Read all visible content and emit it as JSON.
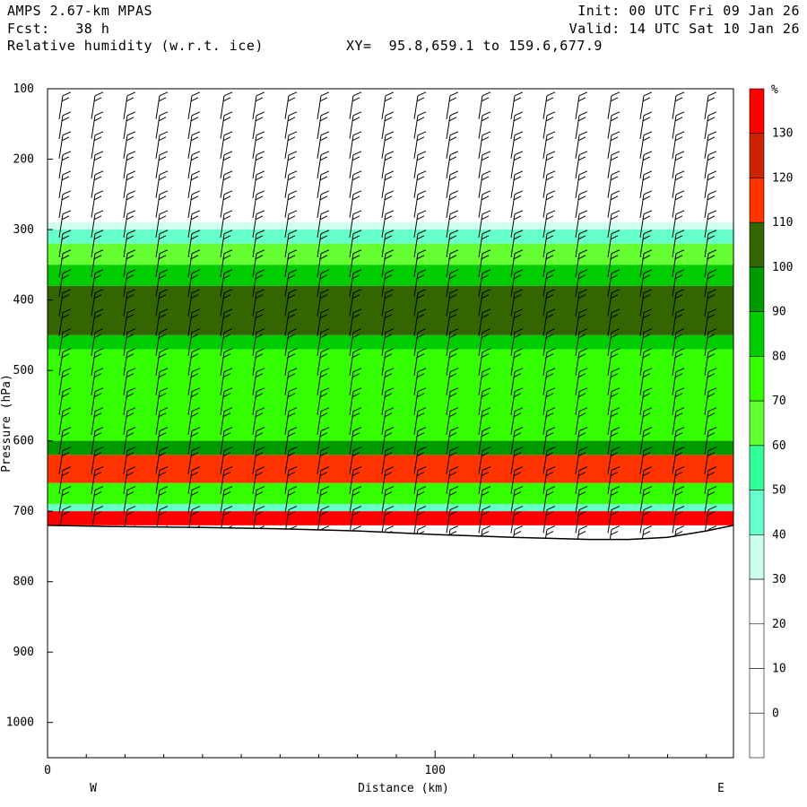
{
  "header": {
    "model": "AMPS 2.67-km MPAS",
    "forecast": "Fcst:   38 h",
    "field": "Relative humidity (w.r.t. ice)",
    "xy": "XY=  95.8,659.1 to 159.6,677.9",
    "init": "Init: 00 UTC Fri 09 Jan 26",
    "valid": "Valid: 14 UTC Sat 10 Jan 26"
  },
  "chart_data": {
    "type": "heatmap",
    "title": "Relative humidity (w.r.t. ice)",
    "xlabel": "Distance (km)",
    "ylabel": "Pressure (hPa)",
    "xlim": [
      0,
      177
    ],
    "ylim": [
      1050,
      100
    ],
    "x_ticks": [
      0,
      100
    ],
    "y_ticks": [
      100,
      200,
      300,
      400,
      500,
      600,
      700,
      800,
      900,
      1000
    ],
    "x_end_labels": {
      "left": "W",
      "right": "E"
    },
    "colorbar": {
      "unit": "%",
      "levels": [
        -10,
        0,
        10,
        20,
        30,
        40,
        50,
        60,
        70,
        80,
        90,
        100,
        110,
        120,
        130,
        140
      ],
      "labels": [
        "0",
        "10",
        "20",
        "30",
        "40",
        "50",
        "60",
        "70",
        "80",
        "90",
        "100",
        "110",
        "120",
        "130"
      ],
      "colors": [
        "#ffffff",
        "#ffffff",
        "#ffffff",
        "#ffffff",
        "#ccffee",
        "#66ffcc",
        "#33ff99",
        "#66ff33",
        "#33ff00",
        "#00cc00",
        "#009900",
        "#336600",
        "#ff3300",
        "#cc2200",
        "#ff0000"
      ]
    },
    "rh_layers_hPa": [
      {
        "name": "white",
        "top": 100,
        "bottom": 290,
        "rh": 10
      },
      {
        "name": "pale",
        "top": 290,
        "bottom": 300,
        "rh": 35
      },
      {
        "name": "aqua",
        "top": 300,
        "bottom": 320,
        "rh": 45
      },
      {
        "name": "mid-green",
        "top": 320,
        "bottom": 350,
        "rh": 65
      },
      {
        "name": "green",
        "top": 350,
        "bottom": 380,
        "rh": 85
      },
      {
        "name": "dark-olive",
        "top": 380,
        "bottom": 450,
        "rh": 105
      },
      {
        "name": "green",
        "top": 450,
        "bottom": 470,
        "rh": 85
      },
      {
        "name": "bright-green",
        "top": 470,
        "bottom": 600,
        "rh": 75
      },
      {
        "name": "dark-green",
        "top": 600,
        "bottom": 620,
        "rh": 95
      },
      {
        "name": "ice-supersat",
        "top": 620,
        "bottom": 660,
        "rh": 115
      },
      {
        "name": "green",
        "top": 660,
        "bottom": 690,
        "rh": 70
      },
      {
        "name": "aqua",
        "top": 690,
        "bottom": 700,
        "rh": 45
      },
      {
        "name": "surface-red",
        "top": 700,
        "bottom": 720,
        "rh": 135
      }
    ],
    "terrain_hPa": [
      [
        0,
        720
      ],
      [
        20,
        722
      ],
      [
        40,
        723
      ],
      [
        60,
        725
      ],
      [
        80,
        728
      ],
      [
        100,
        733
      ],
      [
        120,
        737
      ],
      [
        140,
        740
      ],
      [
        150,
        740
      ],
      [
        160,
        737
      ],
      [
        170,
        728
      ],
      [
        177,
        720
      ]
    ],
    "wind_barbs": true
  }
}
